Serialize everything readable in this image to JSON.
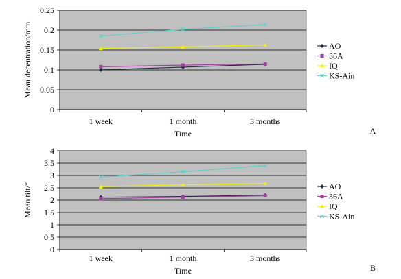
{
  "chart_data": [
    {
      "type": "line",
      "panel_label": "A",
      "categories": [
        "1 week",
        "1 month",
        "3 months"
      ],
      "xlabel": "Time",
      "ylabel": "Mean decentration/mm",
      "ylim": [
        0,
        0.25
      ],
      "yticks": [
        "0",
        "0.05",
        "0.1",
        "0.15",
        "0.2",
        "0.25"
      ],
      "grid": true,
      "legend_position": "right",
      "series": [
        {
          "name": "AO",
          "values": [
            0.1,
            0.107,
            0.114
          ],
          "color": "#1f2a44",
          "marker": "diamond"
        },
        {
          "name": "36A",
          "values": [
            0.108,
            0.112,
            0.115
          ],
          "color": "#a040a0",
          "marker": "square"
        },
        {
          "name": "IQ",
          "values": [
            0.154,
            0.158,
            0.163
          ],
          "color": "#f2f200",
          "marker": "triangle"
        },
        {
          "name": "KS-Ain",
          "values": [
            0.185,
            0.202,
            0.214
          ],
          "color": "#66cccc",
          "marker": "x"
        }
      ]
    },
    {
      "type": "line",
      "panel_label": "B",
      "categories": [
        "1 week",
        "1 month",
        "3 months"
      ],
      "xlabel": "Time",
      "ylabel": "Mean tilt/°",
      "ylim": [
        0,
        4
      ],
      "yticks": [
        "0",
        "0.5",
        "1",
        "1.5",
        "2",
        "2.5",
        "3",
        "3.5",
        "4"
      ],
      "grid": true,
      "legend_position": "right",
      "series": [
        {
          "name": "AO",
          "values": [
            2.12,
            2.15,
            2.2
          ],
          "color": "#1f2a44",
          "marker": "diamond"
        },
        {
          "name": "36A",
          "values": [
            2.06,
            2.12,
            2.18
          ],
          "color": "#a040a0",
          "marker": "square"
        },
        {
          "name": "IQ",
          "values": [
            2.55,
            2.62,
            2.68
          ],
          "color": "#f2f200",
          "marker": "triangle"
        },
        {
          "name": "KS-Ain",
          "values": [
            2.93,
            3.15,
            3.4
          ],
          "color": "#66cccc",
          "marker": "x"
        }
      ]
    }
  ]
}
